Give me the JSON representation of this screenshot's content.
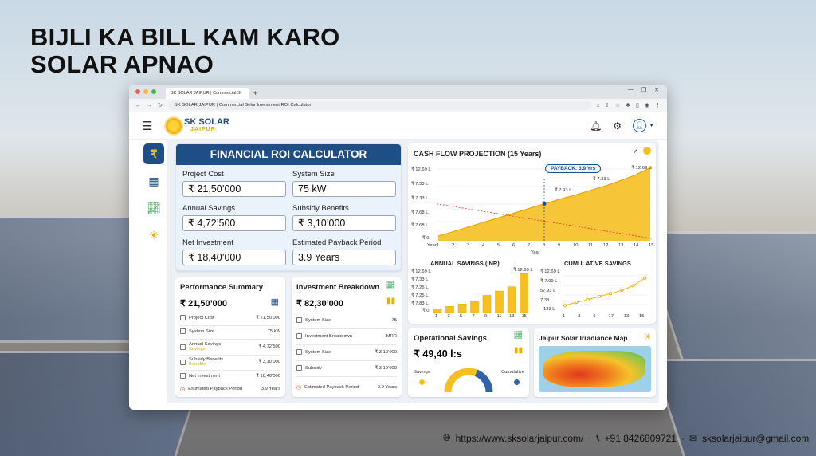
{
  "headline": {
    "line1": "BIJLI KA BILL KAM KARO",
    "line2": "SOLAR APNAO"
  },
  "browser": {
    "tab_title": "SK SOLAR JAIPUR | Commercial S",
    "url": "SK SOLAR JAIPUR | Commercial Solar Investment ROI Calculator"
  },
  "brand": {
    "name": "SK SOLAR",
    "city": "JAIPUR"
  },
  "roi": {
    "title": "FINANCIAL ROI CALCULATOR",
    "fields": [
      {
        "label": "Project Cost",
        "value": "₹ 21,50’000"
      },
      {
        "label": "System Size",
        "value": "75 kW"
      },
      {
        "label": "Annual Savings",
        "value": "₹ 4,72’500"
      },
      {
        "label": "Subsidy Benefits",
        "value": "₹ 3,10’000"
      },
      {
        "label": "Net Investment",
        "value": "₹ 18,40’000"
      },
      {
        "label": "Estimated Payback Period",
        "value": "3.9 Years"
      }
    ]
  },
  "perf": {
    "title": "Performance Summary",
    "total": "₹ 21,50’000",
    "rows": [
      {
        "label": "Project Cost",
        "value": "₹ 21,50’000"
      },
      {
        "label": "System Size",
        "value": "75 kW"
      },
      {
        "label": "Annual Savings",
        "value": "₹ 4,72’500",
        "sub": "Savings"
      },
      {
        "label": "Subsidy Benefits",
        "value": "₹ 3,10’000",
        "sub": "Benefits"
      },
      {
        "label": "Net Investment",
        "value": "₹ 18,40’000"
      },
      {
        "label": "Estimated Payback Period",
        "value": "3.9 Years"
      }
    ]
  },
  "invest": {
    "title": "Investment Breakdown",
    "total": "₹ 82,30’000",
    "rows": [
      {
        "label": "System Size",
        "value": "75"
      },
      {
        "label": "Investment Breakdown",
        "value": "MRR"
      },
      {
        "label": "System Size",
        "value": "₹ 3,10’000"
      },
      {
        "label": "Subsidy",
        "value": "₹ 3,10’000"
      },
      {
        "label": "Estimated Payback Period",
        "value": "3.9 Years"
      }
    ]
  },
  "cashflow": {
    "title": "CASH FLOW PROJECTION (15 Years)",
    "payback_label": "PAYBACK: 3.9 Yrs",
    "y_ticks": [
      "₹ 12.69 L",
      "₹ 7.33 L",
      "₹ 7.33 L",
      "₹ 7.68 L",
      "₹ 7.68 L",
      "₹ 0"
    ],
    "x_first": "Year",
    "x_label": "Year",
    "annot": [
      "₹ 12.69 L",
      "₹ 7.33 L",
      "₹ 7.93 L"
    ]
  },
  "annual": {
    "title": "ANNUAL SAVINGS (INR)",
    "y_ticks": [
      "₹ 12.69 L",
      "₹ 7.33 L",
      "₹ 7.25 L",
      "₹ 7.25 L",
      "₹ 7.83 L",
      "₹ 0"
    ],
    "x_ticks": [
      "1",
      "3",
      "5",
      "7",
      "9",
      "11",
      "13",
      "15"
    ],
    "top_label": "₹ 12.69 L"
  },
  "cumulative": {
    "title": "CUMULATIVE SAVINGS",
    "y_ticks": [
      "₹ 12.69 L",
      "₹ 7.99 L",
      "57.93 L",
      "7.33 L",
      "133 L"
    ],
    "x_ticks": [
      "1",
      "3",
      "5",
      "17",
      "13",
      "15"
    ]
  },
  "operational": {
    "title": "Operational Savings",
    "value": "₹ 49,40 l:s",
    "left": "Savings",
    "right": "Cumulative"
  },
  "irradiance": {
    "title": "Jaipur Solar Irradiance Map"
  },
  "contact": {
    "website": "https://www.sksolarjaipur.com/",
    "phone": "+91 8426809721",
    "email": "sksolarjaipur@gmail.com"
  },
  "chart_data": [
    {
      "type": "area",
      "title": "CASH FLOW PROJECTION (15 Years)",
      "xlabel": "Year",
      "x": [
        1,
        2,
        3,
        4,
        5,
        6,
        7,
        8,
        9,
        10,
        11,
        12,
        13,
        14,
        15
      ],
      "series": [
        {
          "values": [
            0.8,
            1.6,
            2.4,
            3.2,
            4.0,
            4.8,
            5.6,
            6.4,
            7.2,
            7.9,
            8.7,
            9.5,
            10.4,
            11.4,
            12.69
          ]
        }
      ],
      "unit": "₹ L"
    },
    {
      "type": "bar",
      "title": "ANNUAL SAVINGS (INR)",
      "categories": [
        "1",
        "3",
        "5",
        "7",
        "9",
        "11",
        "13",
        "15"
      ],
      "values": [
        1.2,
        2.0,
        2.8,
        3.6,
        5.6,
        7.0,
        8.4,
        12.69
      ],
      "unit": "₹ L"
    },
    {
      "type": "line",
      "title": "CUMULATIVE SAVINGS",
      "x": [
        1,
        3,
        5,
        7,
        9,
        11,
        13,
        15
      ],
      "series": [
        {
          "values": [
            1.5,
            2.6,
            3.4,
            4.5,
            5.4,
            6.5,
            8.0,
            10.5
          ]
        }
      ],
      "unit": "₹ L"
    },
    {
      "type": "pie",
      "title": "Operational Savings",
      "categories": [
        "Savings",
        "Cumulative"
      ],
      "values": [
        62,
        38
      ]
    }
  ],
  "colors": {
    "navy": "#1f4e87",
    "gold": "#f6c022",
    "blue": "#2f62a8"
  }
}
